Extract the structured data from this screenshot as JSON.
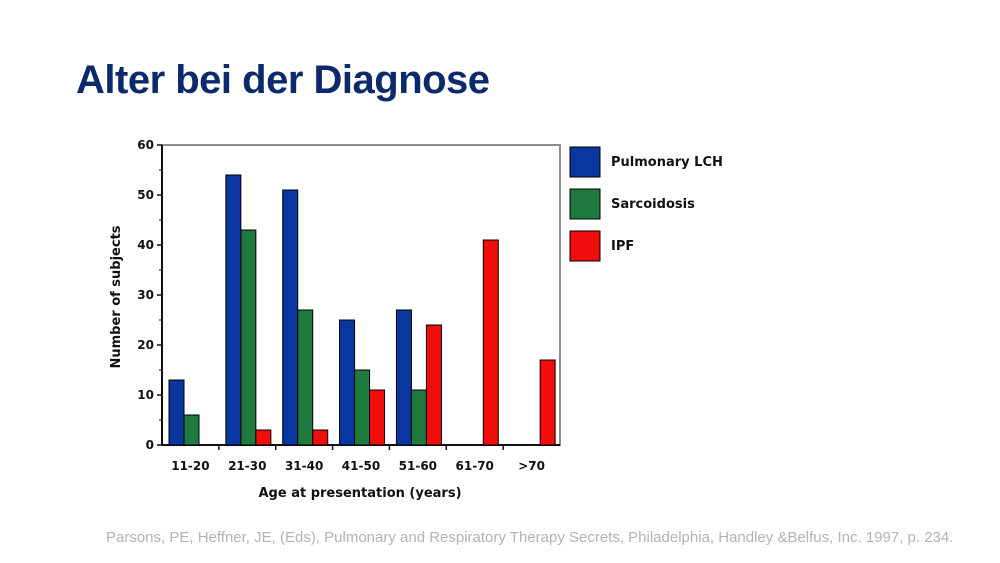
{
  "slide": {
    "title": "Alter bei der Diagnose",
    "citation": "Parsons, PE, Heffner, JE, (Eds), Pulmonary and Respiratory Therapy Secrets, Philadelphia, Handley &Belfus, Inc. 1997, p. 234."
  },
  "chart_data": {
    "type": "bar",
    "xlabel": "Age at presentation (years)",
    "ylabel": "Number of subjects",
    "ylim": [
      0,
      60
    ],
    "yticks": [
      0,
      10,
      20,
      30,
      40,
      50,
      60
    ],
    "grid": false,
    "legend_position": "right",
    "categories": [
      "11-20",
      "21-30",
      "31-40",
      "41-50",
      "51-60",
      "61-70",
      ">70"
    ],
    "series": [
      {
        "name": "Pulmonary LCH",
        "color": "#0a36a0",
        "values": [
          13,
          54,
          51,
          25,
          27,
          0,
          0
        ]
      },
      {
        "name": "Sarcoidosis",
        "color": "#1e7a3e",
        "values": [
          6,
          43,
          27,
          15,
          11,
          0,
          0
        ]
      },
      {
        "name": "IPF",
        "color": "#f20d0d",
        "values": [
          0,
          3,
          3,
          11,
          24,
          41,
          17
        ]
      }
    ]
  }
}
